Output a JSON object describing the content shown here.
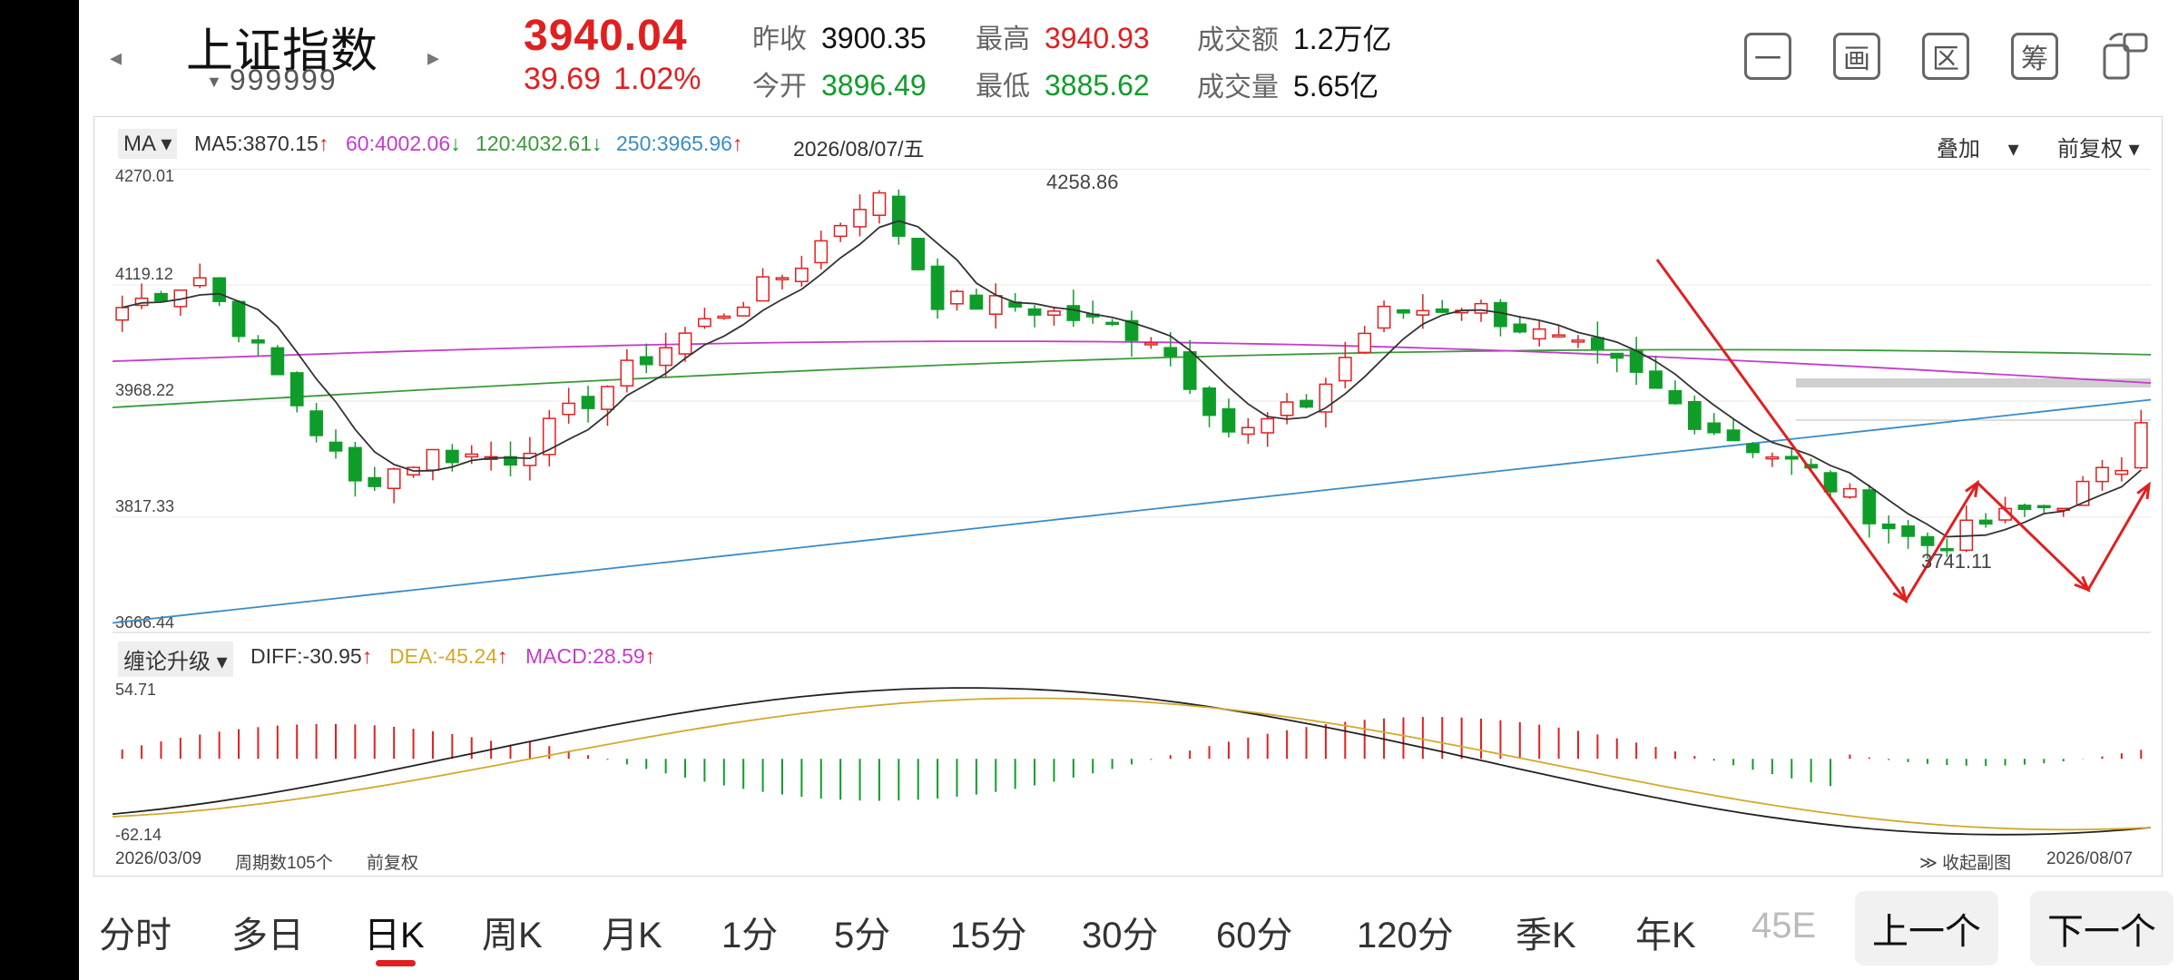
{
  "header": {
    "name": "上证指数",
    "code": "999999",
    "price": "3940.04",
    "change": "39.69",
    "change_pct": "1.02%",
    "stats": {
      "prev_close_label": "昨收",
      "prev_close": "3900.35",
      "open_label": "今开",
      "open": "3896.49",
      "high_label": "最高",
      "high": "3940.93",
      "low_label": "最低",
      "low": "3885.62",
      "amount_label": "成交额",
      "amount": "1.2万亿",
      "volume_label": "成交量",
      "volume": "5.65亿"
    },
    "tools": [
      "一",
      "画",
      "区",
      "筹"
    ],
    "tool_icons": [
      "minus-icon",
      "draw-icon",
      "region-icon",
      "chips-icon",
      "screen-rotate-icon"
    ]
  },
  "legend": {
    "ma_button": "MA",
    "ma5": "MA5:3870.15",
    "ma60": "60:4002.06",
    "ma120": "120:4032.61",
    "ma250": "250:3965.96",
    "date": "2026/08/07/五",
    "overlay": "叠加",
    "adjust": "前复权",
    "colors": {
      "ma5": "#333333",
      "ma60": "#c63bcc",
      "ma120": "#3a9a3a",
      "ma250": "#3a8cc8",
      "dif": "#d4a82a",
      "macd": "#c63bcc"
    }
  },
  "sub_legend": {
    "button": "缠论升级",
    "diff": "DIFF:-30.95",
    "dea": "DEA:-45.24",
    "macd": "MACD:28.59"
  },
  "footer": {
    "start_date": "2026/03/09",
    "period": "周期数105个",
    "adjust": "前复权",
    "collapse": "收起副图",
    "end_date": "2026/08/07"
  },
  "chart_data": {
    "type": "candlestick",
    "y_ticks": [
      "4270.01",
      "4119.12",
      "3968.22",
      "3817.33",
      "3666.44"
    ],
    "ylim": [
      3666.44,
      4270.01
    ],
    "high_label": "4258.86",
    "low_label": "3741.11",
    "ma_lines": [
      "MA5",
      "MA60",
      "MA120",
      "MA250"
    ],
    "macd_ticks": [
      "54.71",
      "-62.14"
    ],
    "macd_ylim": [
      -62.14,
      54.71
    ],
    "colors": {
      "up": "#e02020",
      "down": "#0f9d2a"
    }
  },
  "tabs": [
    "分时",
    "多日",
    "日K",
    "周K",
    "月K",
    "1分",
    "5分",
    "15分",
    "30分",
    "60分",
    "120分",
    "季K",
    "年K",
    "45E"
  ],
  "active_tab": "日K",
  "pager": {
    "prev": "上一个",
    "next": "下一个"
  }
}
